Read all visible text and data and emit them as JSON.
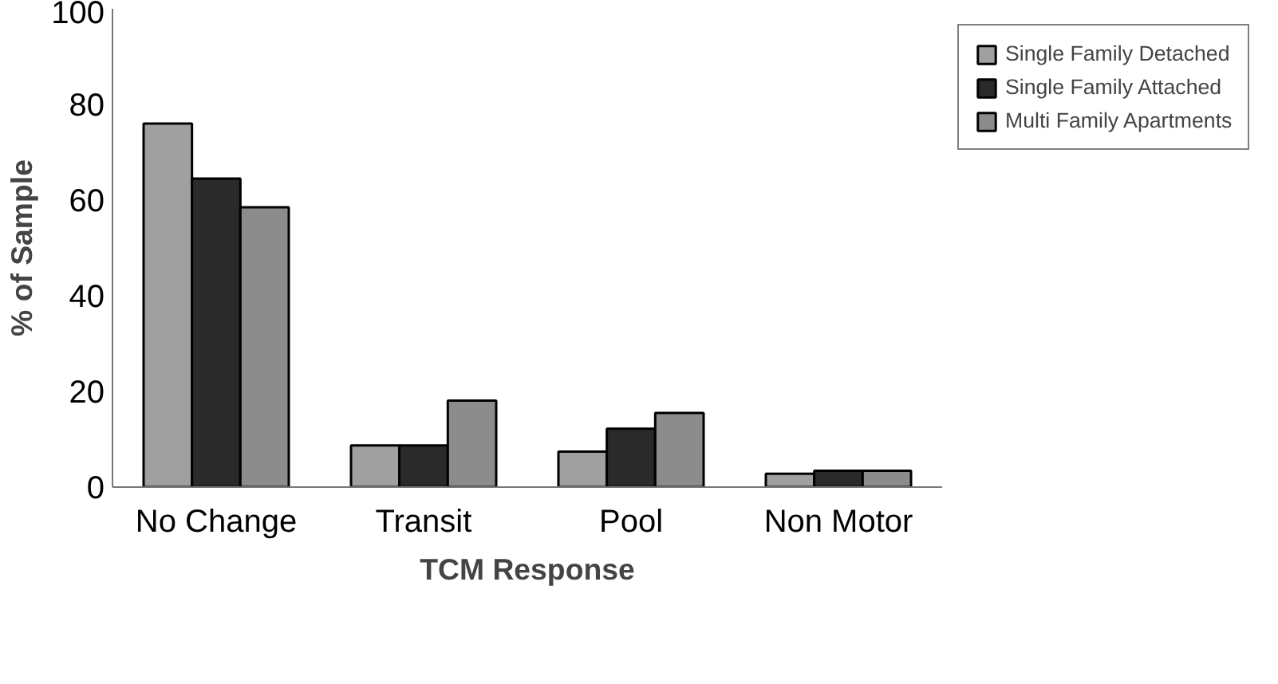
{
  "chart_data": {
    "type": "bar",
    "xlabel": "TCM Response",
    "ylabel": "% of Sample",
    "categories": [
      "No Change",
      "Transit",
      "Pool",
      "Non Motor"
    ],
    "series": [
      {
        "name": "Single Family Detached",
        "color": "#a0a0a0",
        "values": [
          76,
          8.7,
          7.4,
          2.8
        ]
      },
      {
        "name": "Single Family Attached",
        "color": "#2a2a2a",
        "values": [
          64.5,
          8.7,
          12.2,
          3.4
        ]
      },
      {
        "name": "Multi Family Apartments",
        "color": "#8c8c8c",
        "values": [
          58.5,
          18.1,
          15.5,
          3.4
        ]
      }
    ],
    "ylim": [
      0,
      100
    ],
    "yticks": [
      0,
      20,
      40,
      60,
      80,
      100
    ],
    "grid": false,
    "legend": "right"
  }
}
